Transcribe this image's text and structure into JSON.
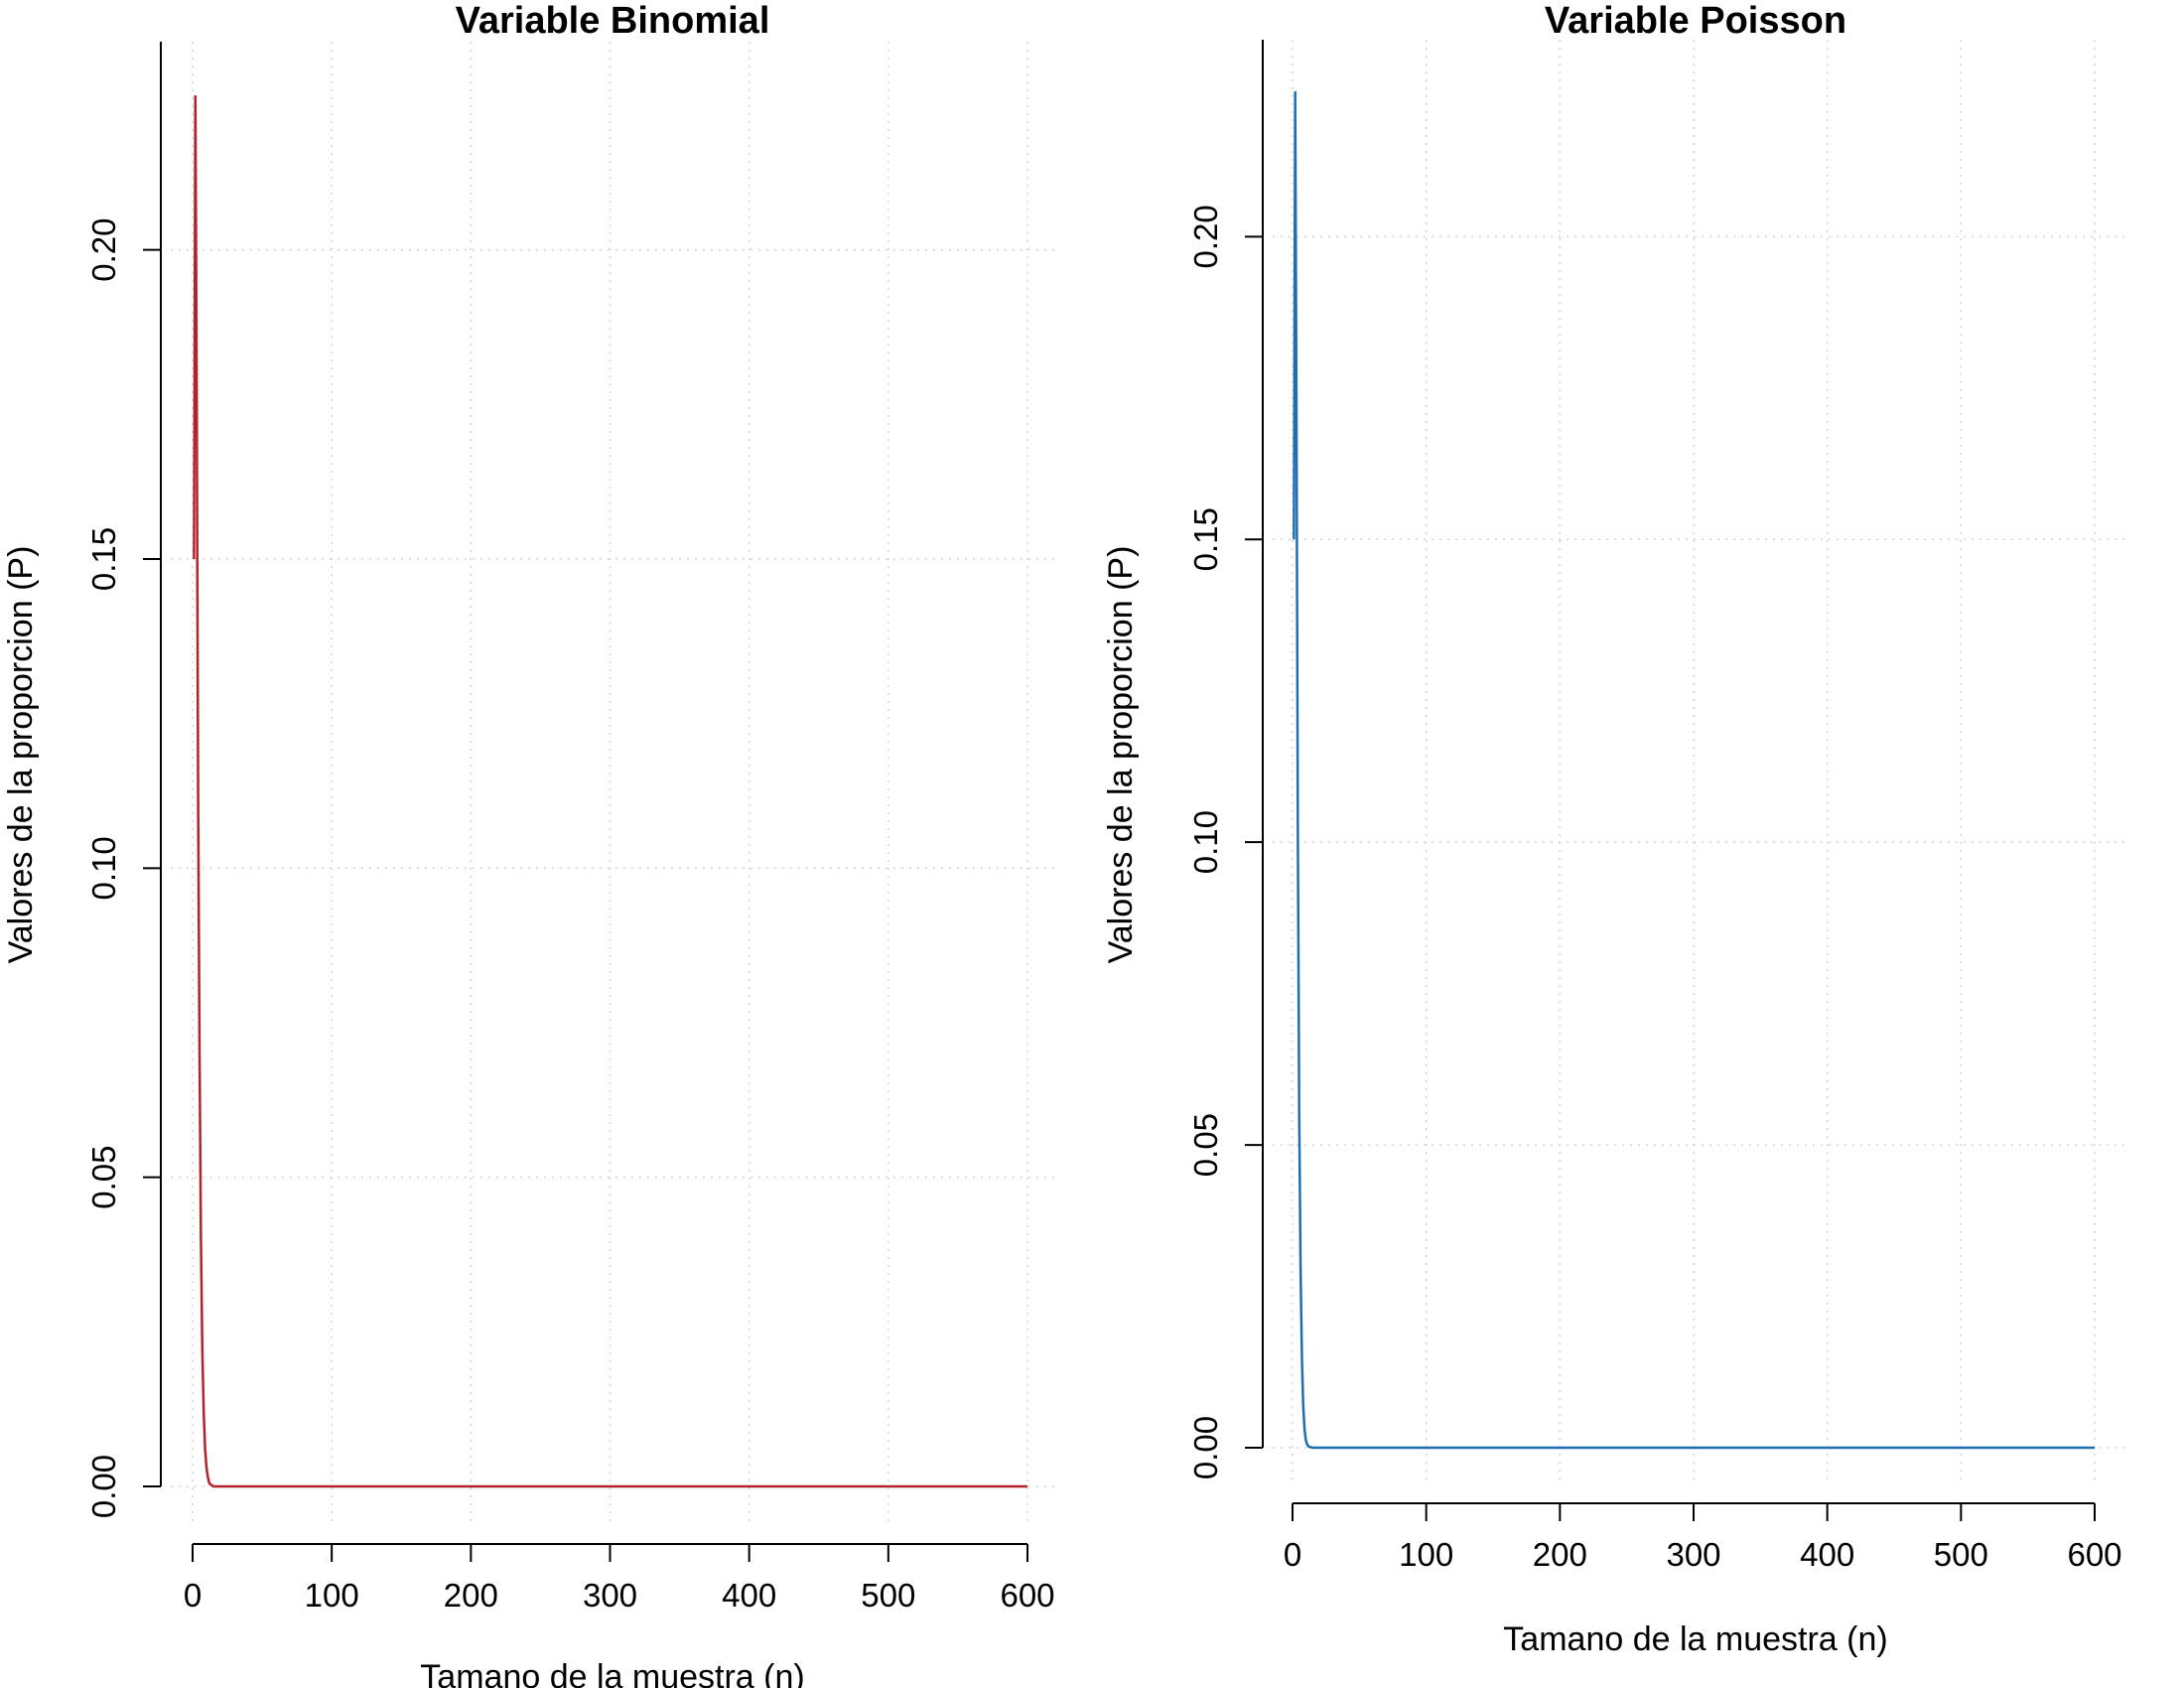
{
  "chart_data": [
    {
      "type": "line",
      "title": "Variable Binomial",
      "xlabel": "Tamano de la muestra (n)",
      "ylabel": "Valores de la proporcion (P)",
      "xlim": [
        0,
        600
      ],
      "ylim": [
        0,
        0.225
      ],
      "x_ticks": [
        "0",
        "100",
        "200",
        "300",
        "400",
        "500",
        "600"
      ],
      "y_ticks": [
        "0.00",
        "0.05",
        "0.10",
        "0.15",
        "0.20"
      ],
      "grid": true,
      "color": "#b2222a",
      "series": [
        {
          "x": [
            1,
            2,
            3,
            4,
            5,
            6,
            7,
            8,
            9,
            10,
            11,
            12,
            15,
            20,
            50,
            100,
            200,
            300,
            400,
            500,
            600
          ],
          "y": [
            0.15,
            0.225,
            0.175,
            0.11,
            0.07,
            0.04,
            0.022,
            0.012,
            0.006,
            0.003,
            0.0015,
            0.0005,
            0,
            0,
            0,
            0,
            0,
            0,
            0,
            0,
            0
          ]
        }
      ]
    },
    {
      "type": "line",
      "title": "Variable Poisson",
      "xlabel": "Tamano de la muestra (n)",
      "ylabel": "Valores de la proporcion (P)",
      "xlim": [
        0,
        600
      ],
      "ylim": [
        0,
        0.224
      ],
      "x_ticks": [
        "0",
        "100",
        "200",
        "300",
        "400",
        "500",
        "600"
      ],
      "y_ticks": [
        "0.00",
        "0.05",
        "0.10",
        "0.15",
        "0.20"
      ],
      "grid": true,
      "color": "#1f6fb0",
      "series": [
        {
          "x": [
            1,
            2,
            3,
            4,
            5,
            6,
            7,
            8,
            9,
            10,
            11,
            12,
            15,
            20,
            50,
            100,
            200,
            300,
            400,
            500,
            600
          ],
          "y": [
            0.15,
            0.224,
            0.168,
            0.1,
            0.055,
            0.03,
            0.015,
            0.007,
            0.003,
            0.0012,
            0.0005,
            0.0002,
            0,
            0,
            0,
            0,
            0,
            0,
            0,
            0,
            0
          ]
        }
      ]
    }
  ]
}
